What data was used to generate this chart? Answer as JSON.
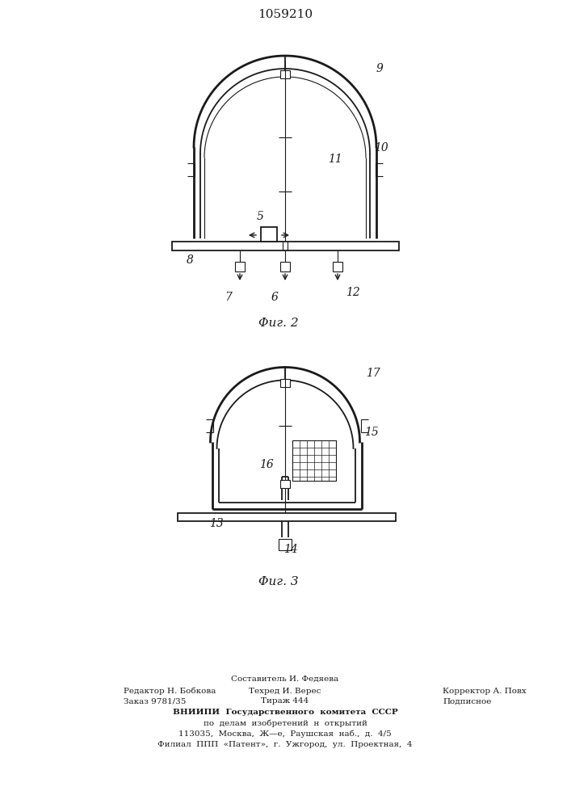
{
  "title": "1059210",
  "bg_color": "#ffffff",
  "line_color": "#1a1a1a",
  "fig2_caption": "Φиг. 2",
  "fig3_caption": "Φиг. 3",
  "footer_col1_lines": [
    "Редактор Н. Бобкова",
    "Заказ 9781/35"
  ],
  "footer_col2_line1": "Составитель И. Федяева",
  "footer_col2_lines": [
    "Техред И. Верес",
    "Тираж 444"
  ],
  "footer_col3_lines": [
    "Корректор А. Повх",
    "Подписное"
  ],
  "footer_center_lines": [
    "ВНИИПИ  Государственного  комитета  СССР",
    "по  делам  изобретений  н  открытий",
    "113035,  Москва,  Ж—е,  Раушская  наб.,  д.  4/5",
    "Филиал  ППП  «Патент»,  г.  Ужгород,  ул.  Проектная,  4"
  ]
}
